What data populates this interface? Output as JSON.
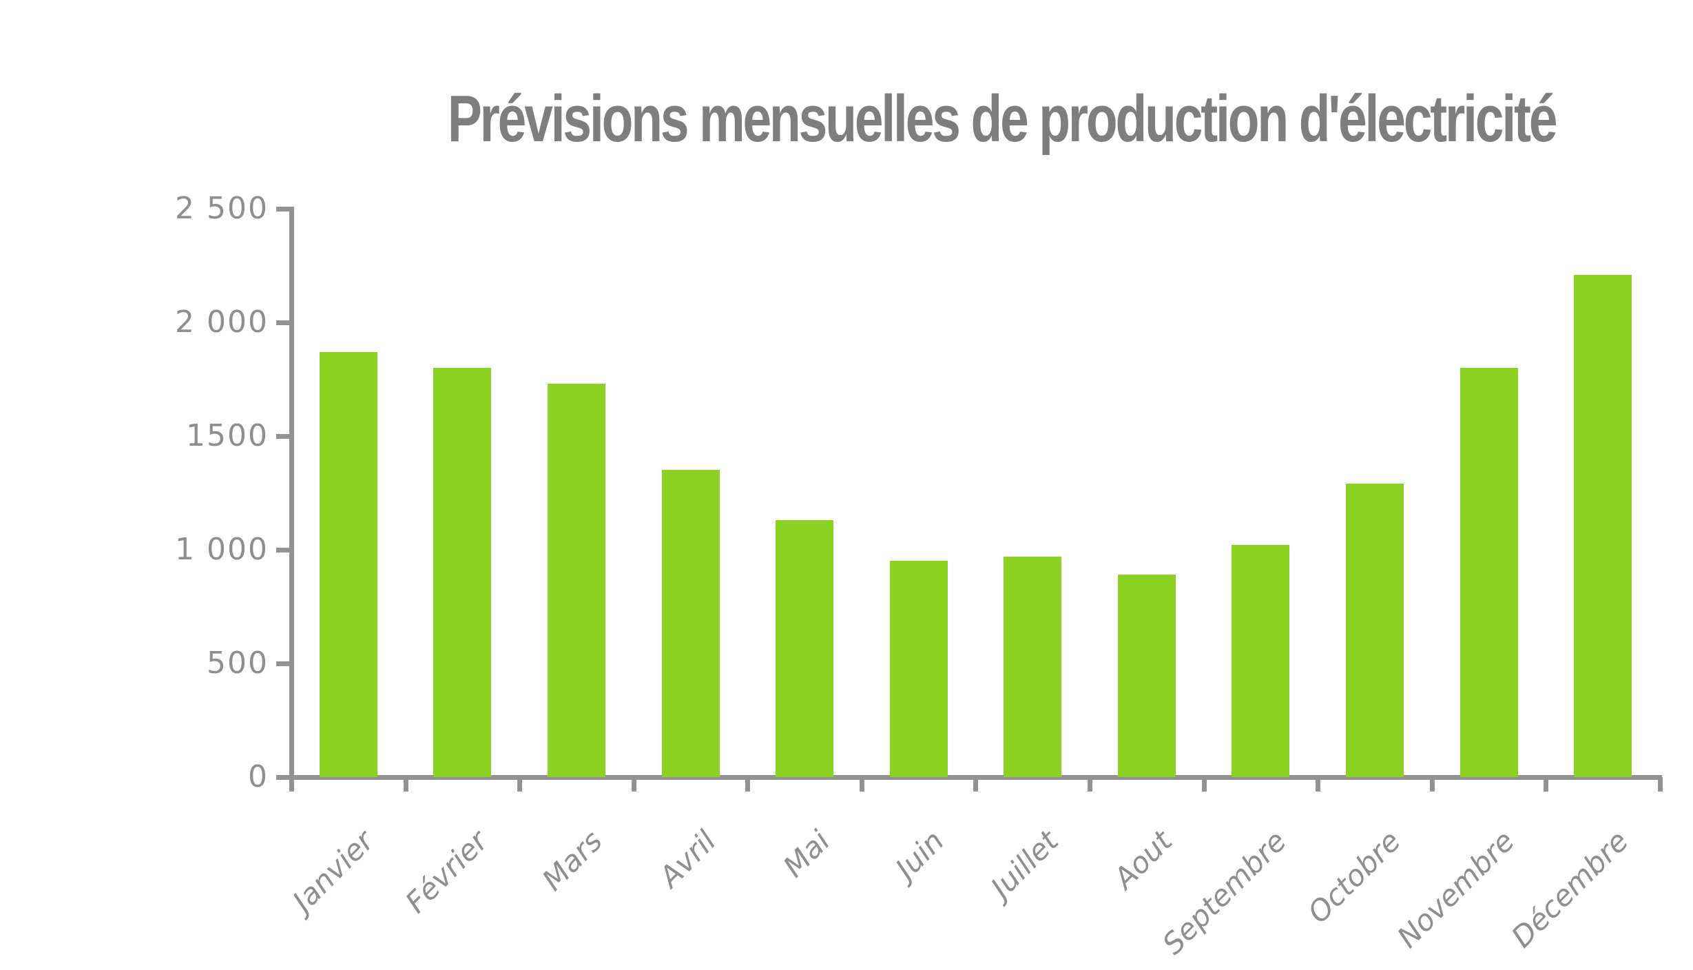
{
  "chart_data": {
    "type": "bar",
    "title": "Prévisions mensuelles de production d'électricité",
    "categories": [
      "Janvier",
      "Février",
      "Mars",
      "Avril",
      "Mai",
      "Juin",
      "Juillet",
      "Aout",
      "Septembre",
      "Octobre",
      "Novembre",
      "Décembre"
    ],
    "values": [
      1870,
      1800,
      1730,
      1350,
      1130,
      950,
      970,
      890,
      1020,
      1290,
      1800,
      2210
    ],
    "xlabel": "",
    "ylabel": "",
    "ylim": [
      0,
      2500
    ],
    "ytick_interval": 500,
    "ytick_labels": [
      "0",
      "500",
      "1 000",
      "1500",
      "2 000",
      "2 500"
    ],
    "grid": false,
    "legend_position": "none",
    "bar_color": "#8BD222",
    "axis_color": "#929292",
    "label_color": "#8E8E8E",
    "title_color": "#7E7E7E"
  }
}
